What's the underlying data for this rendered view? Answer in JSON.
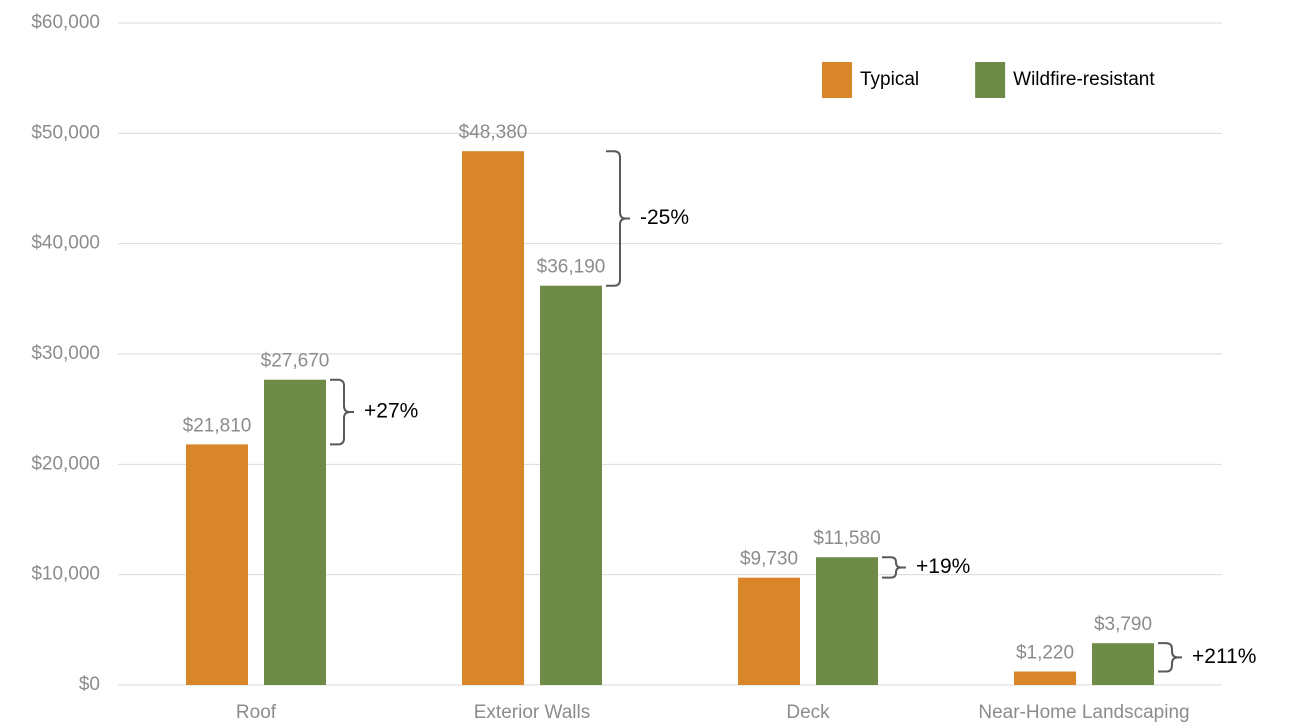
{
  "chart_data": {
    "type": "bar",
    "categories": [
      "Roof",
      "Exterior Walls",
      "Deck",
      "Near-Home Landscaping"
    ],
    "series": [
      {
        "name": "Typical",
        "color": "#d9862b",
        "values": [
          21810,
          48380,
          9730,
          1220
        ],
        "value_labels": [
          "$21,810",
          "$48,380",
          "$9,730",
          "$1,220"
        ]
      },
      {
        "name": "Wildfire-resistant",
        "color": "#6e8b47",
        "values": [
          27670,
          36190,
          11580,
          3790
        ],
        "value_labels": [
          "$27,670",
          "$36,190",
          "$11,580",
          "$3,790"
        ]
      }
    ],
    "annotations": [
      "+27%",
      "-25%",
      "+19%",
      "+211%"
    ],
    "ylim": [
      0,
      60000
    ],
    "yticks": [
      {
        "value": 0,
        "label": "$0"
      },
      {
        "value": 10000,
        "label": "$10,000"
      },
      {
        "value": 20000,
        "label": "$20,000"
      },
      {
        "value": 30000,
        "label": "$30,000"
      },
      {
        "value": 40000,
        "label": "$40,000"
      },
      {
        "value": 50000,
        "label": "$50,000"
      },
      {
        "value": 60000,
        "label": "$60,000"
      }
    ],
    "grid": true,
    "legend": "upper right"
  }
}
